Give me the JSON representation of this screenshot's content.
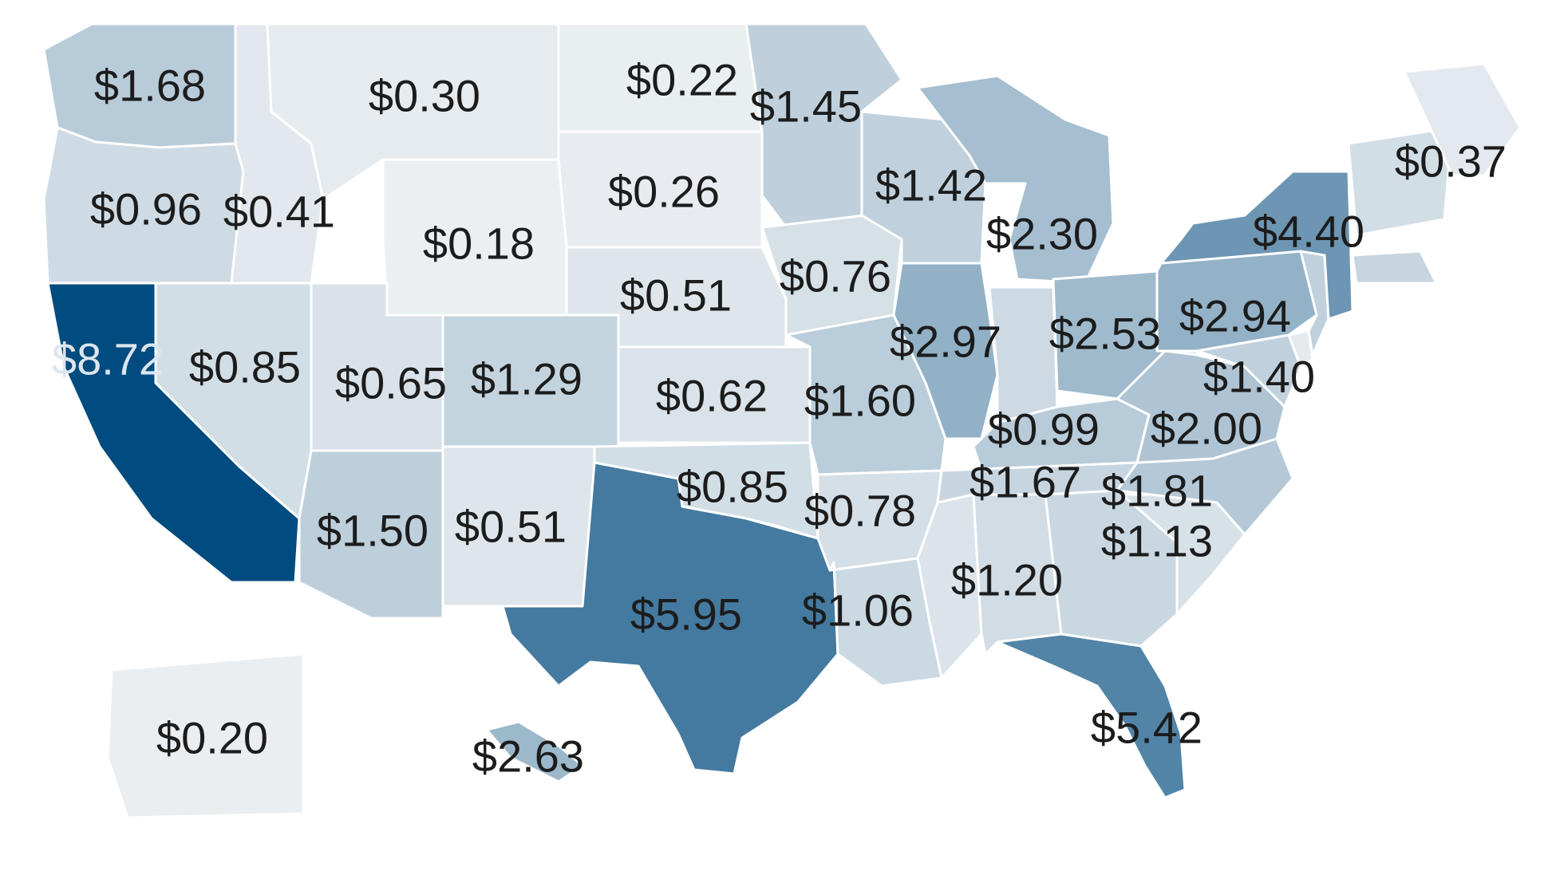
{
  "map": {
    "color_scale": {
      "min_color": "#f4f5f6",
      "max_color": "#004b7f"
    },
    "dark_label_color": "#1c1c1c",
    "light_label_color": "#dce6ef",
    "regions": [
      {
        "id": "wa",
        "value": 1.68,
        "label": "$1.68"
      },
      {
        "id": "or",
        "value": 0.96,
        "label": "$0.96"
      },
      {
        "id": "ca",
        "value": 8.72,
        "label": "$8.72"
      },
      {
        "id": "id",
        "value": 0.41,
        "label": "$0.41"
      },
      {
        "id": "mt",
        "value": 0.3,
        "label": "$0.30"
      },
      {
        "id": "wy",
        "value": 0.18,
        "label": "$0.18"
      },
      {
        "id": "nv",
        "value": 0.85,
        "label": "$0.85"
      },
      {
        "id": "ut",
        "value": 0.65,
        "label": "$0.65"
      },
      {
        "id": "az",
        "value": 1.5,
        "label": "$1.50"
      },
      {
        "id": "co",
        "value": 1.29,
        "label": "$1.29"
      },
      {
        "id": "nm",
        "value": 0.51,
        "label": "$0.51"
      },
      {
        "id": "nd",
        "value": 0.22,
        "label": "$0.22"
      },
      {
        "id": "sd",
        "value": 0.26,
        "label": "$0.26"
      },
      {
        "id": "ne",
        "value": 0.51,
        "label": "$0.51"
      },
      {
        "id": "ks",
        "value": 0.62,
        "label": "$0.62"
      },
      {
        "id": "ok",
        "value": 0.85,
        "label": "$0.85"
      },
      {
        "id": "tx",
        "value": 5.95,
        "label": "$5.95"
      },
      {
        "id": "mn",
        "value": 1.45,
        "label": "$1.45"
      },
      {
        "id": "ia",
        "value": 0.76,
        "label": "$0.76"
      },
      {
        "id": "mo",
        "value": 1.6,
        "label": "$1.60"
      },
      {
        "id": "ar",
        "value": 0.78,
        "label": "$0.78"
      },
      {
        "id": "la",
        "value": 1.06,
        "label": "$1.06"
      },
      {
        "id": "wi",
        "value": 1.42,
        "label": "$1.42"
      },
      {
        "id": "il",
        "value": 2.97,
        "label": "$2.97"
      },
      {
        "id": "mi",
        "value": 2.3,
        "label": "$2.30"
      },
      {
        "id": "in",
        "value": 0.99,
        "label": "$0.99"
      },
      {
        "id": "oh",
        "value": 2.53,
        "label": "$2.53"
      },
      {
        "id": "ky",
        "value": 1.67,
        "label": "$1.67"
      },
      {
        "id": "tn",
        "value": 1.2,
        "label": "$1.20"
      },
      {
        "id": "ga",
        "value": 1.13,
        "label": "$1.13"
      },
      {
        "id": "fl",
        "value": 5.42,
        "label": "$5.42"
      },
      {
        "id": "nc",
        "value": 1.81,
        "label": "$1.81"
      },
      {
        "id": "va",
        "value": 2.0,
        "label": "$2.00"
      },
      {
        "id": "md",
        "value": 1.4,
        "label": "$1.40"
      },
      {
        "id": "pa",
        "value": 2.94,
        "label": "$2.94"
      },
      {
        "id": "ny",
        "value": 4.4,
        "label": "$4.40"
      },
      {
        "id": "me",
        "value": 0.37,
        "label": "$0.37"
      },
      {
        "id": "ak",
        "value": 0.2,
        "label": "$0.20"
      },
      {
        "id": "hi",
        "value": 2.63,
        "label": "$2.63"
      }
    ],
    "unlabeled_regions": [
      {
        "id": "ms",
        "value": 0.6
      },
      {
        "id": "al",
        "value": 0.9
      },
      {
        "id": "sc",
        "value": 0.7
      },
      {
        "id": "wv",
        "value": 0.4
      },
      {
        "id": "nj",
        "value": 1.4
      },
      {
        "id": "de",
        "value": 0.35
      },
      {
        "id": "new-england",
        "value": 0.85
      },
      {
        "id": "ma",
        "value": 1.2
      }
    ]
  }
}
